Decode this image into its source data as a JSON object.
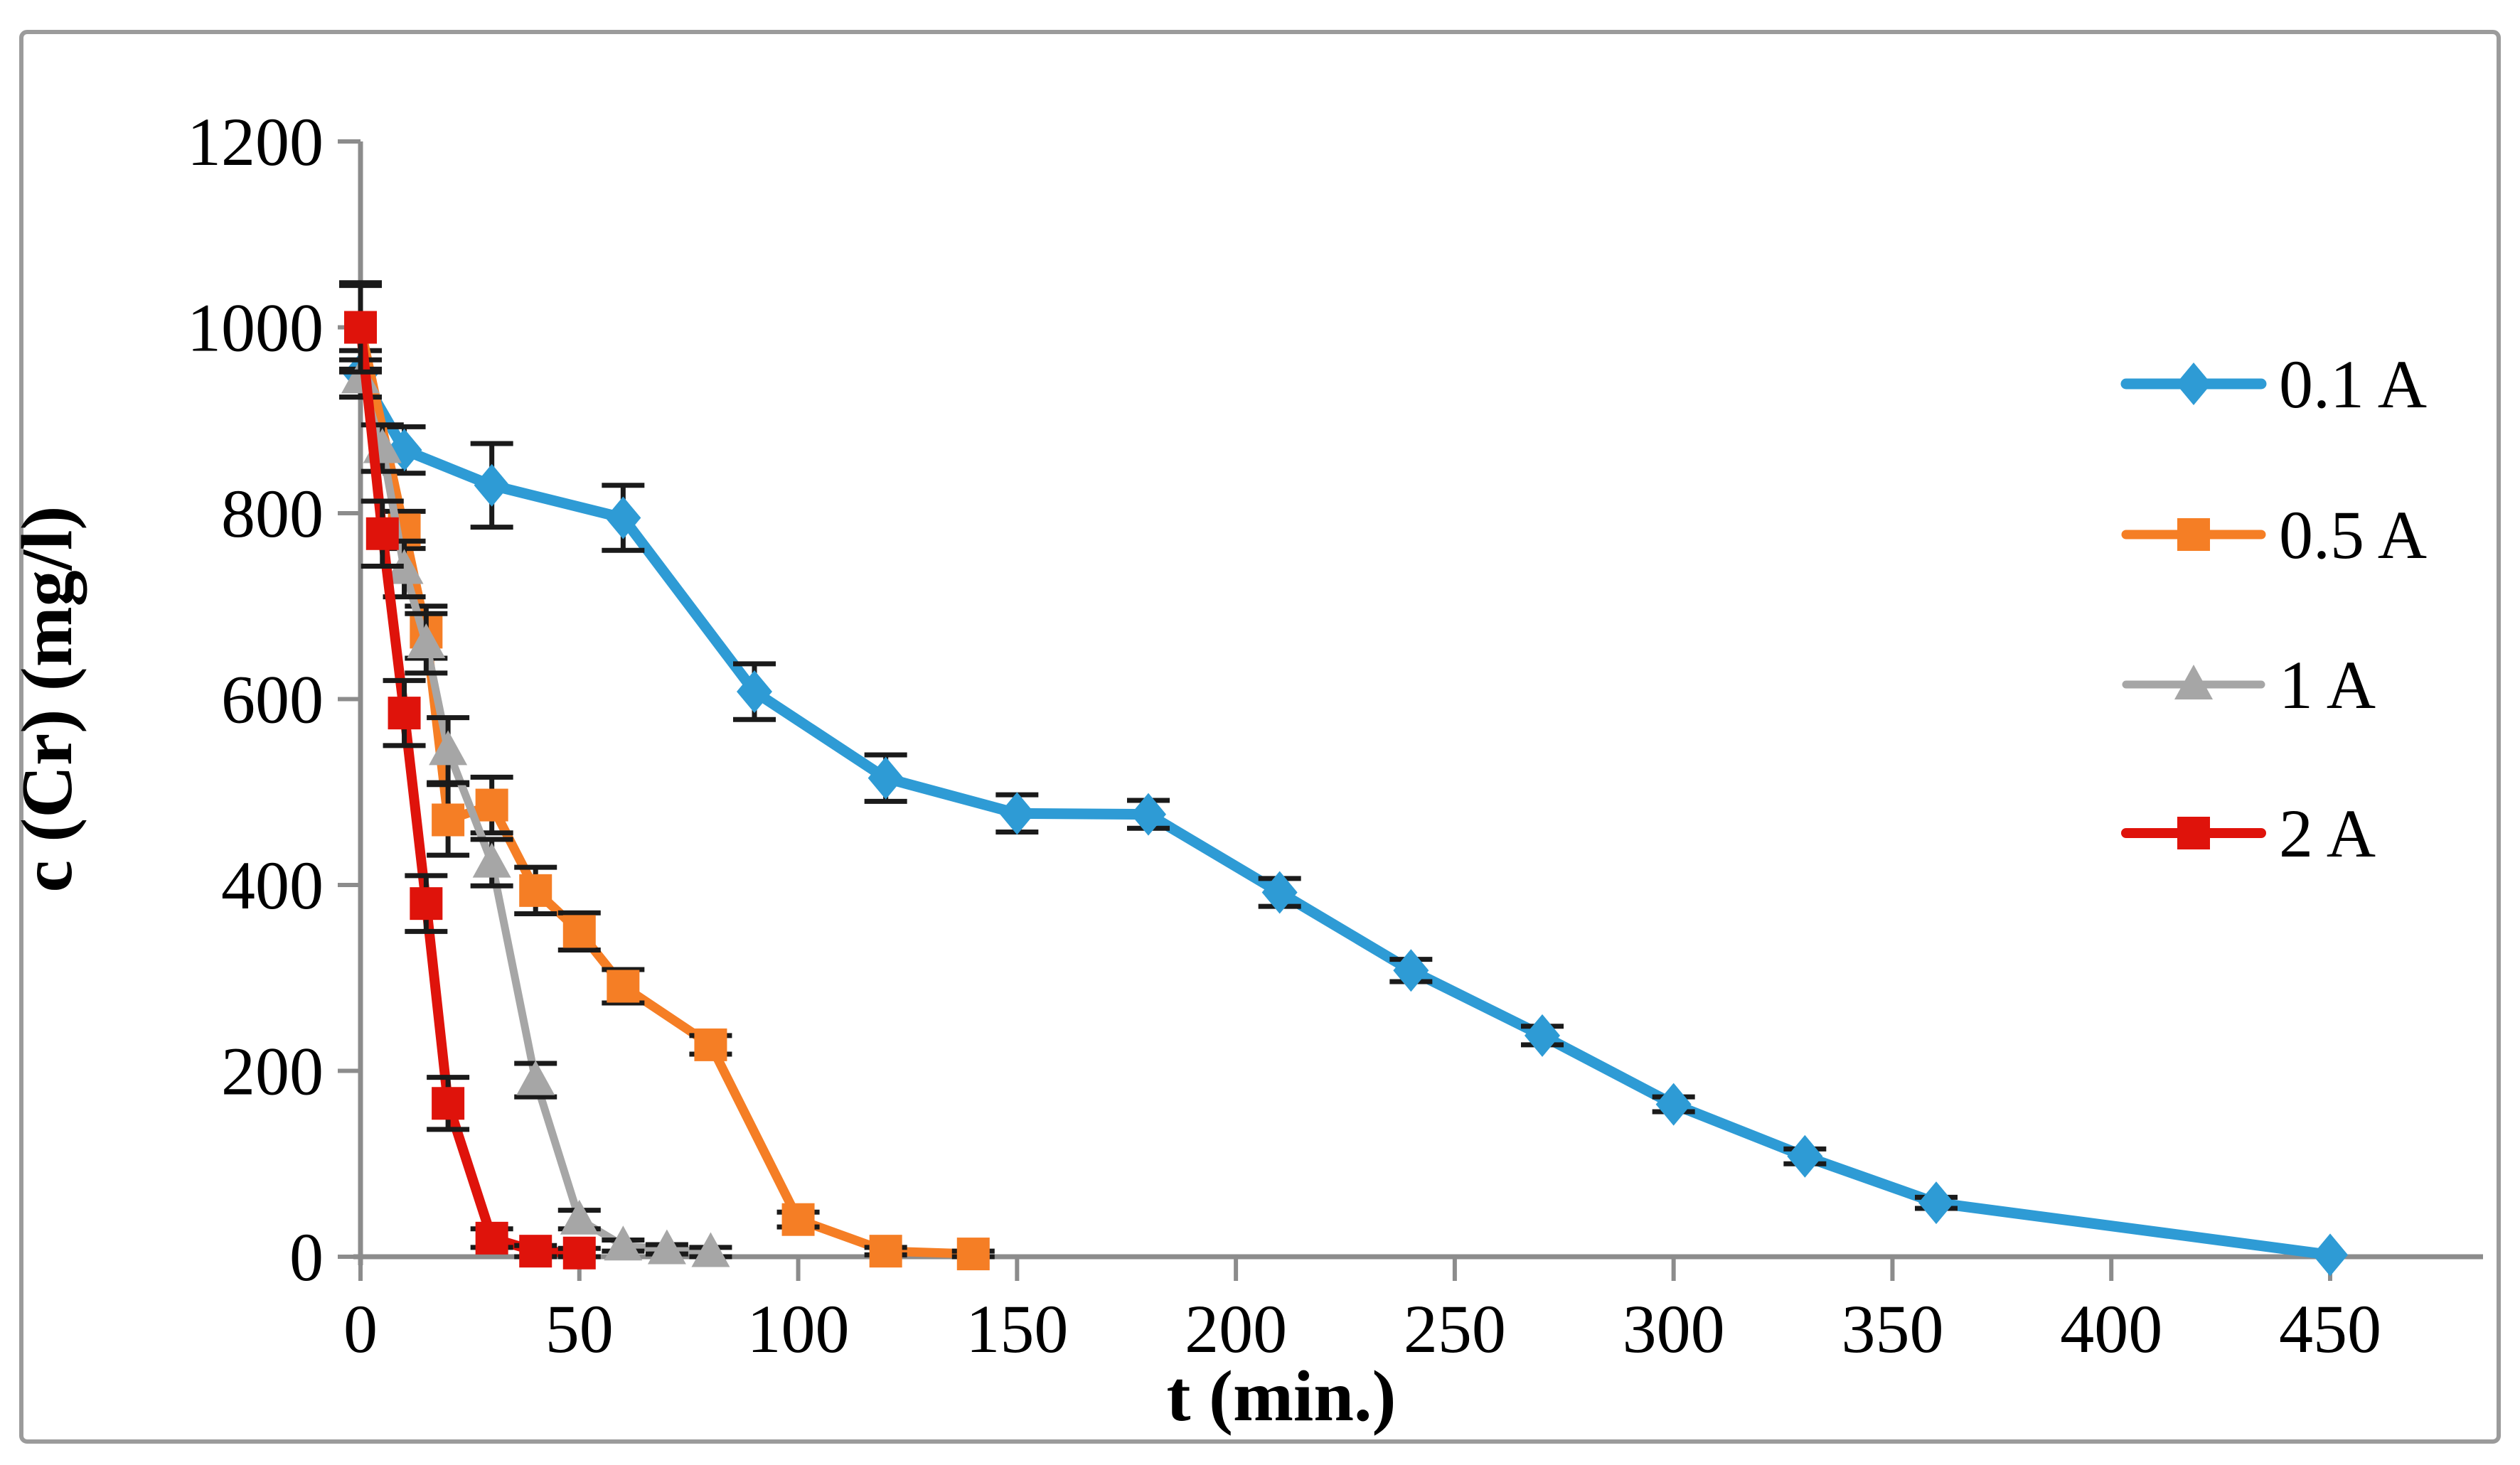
{
  "figure": {
    "background": "#ffffff",
    "border_color": "#9b9b9b",
    "axis_color": "#8c8c8c",
    "error_bar_color": "#1a1a1a",
    "text_color": "#000000"
  },
  "chart_data": {
    "type": "line",
    "title": "",
    "xlabel": "t (min.)",
    "ylabel": "c (Cr) (mg/l)",
    "xlim": [
      0,
      450
    ],
    "ylim": [
      0,
      1200
    ],
    "xticks": [
      0,
      50,
      100,
      150,
      200,
      250,
      300,
      350,
      400,
      450
    ],
    "yticks": [
      0,
      200,
      400,
      600,
      800,
      1000,
      1200
    ],
    "grid": false,
    "legend_position": "right",
    "error_bars": true,
    "series": [
      {
        "name": "0.1 A",
        "color": "#2E9BD5",
        "marker": "diamond",
        "x": [
          0,
          10,
          30,
          60,
          90,
          120,
          150,
          180,
          210,
          240,
          270,
          300,
          330,
          360,
          450
        ],
        "y": [
          950,
          868,
          830,
          795,
          608,
          515,
          477,
          476,
          392,
          308,
          238,
          164,
          108,
          58,
          2
        ],
        "err": [
          25,
          25,
          45,
          35,
          30,
          25,
          20,
          15,
          15,
          12,
          10,
          8,
          8,
          6,
          0
        ]
      },
      {
        "name": "0.5 A",
        "color": "#F57E25",
        "marker": "square",
        "x": [
          0,
          10,
          15,
          20,
          30,
          40,
          50,
          60,
          80,
          100,
          120,
          140
        ],
        "y": [
          1000,
          782,
          672,
          470,
          486,
          394,
          350,
          291,
          228,
          40,
          6,
          3
        ],
        "err": [
          45,
          20,
          28,
          38,
          30,
          25,
          20,
          18,
          10,
          8,
          4,
          3
        ]
      },
      {
        "name": "1 A",
        "color": "#A6A6A6",
        "marker": "triangle",
        "x": [
          0,
          5,
          10,
          15,
          20,
          30,
          40,
          50,
          60,
          70,
          80
        ],
        "y": [
          945,
          870,
          740,
          660,
          545,
          424,
          190,
          40,
          12,
          8,
          5
        ],
        "err": [
          20,
          25,
          30,
          32,
          35,
          25,
          18,
          10,
          6,
          5,
          5
        ]
      },
      {
        "name": "2 A",
        "color": "#DF130B",
        "marker": "square",
        "x": [
          0,
          5,
          10,
          15,
          20,
          30,
          40,
          50
        ],
        "y": [
          1000,
          778,
          585,
          380,
          165,
          20,
          6,
          4
        ],
        "err": [
          48,
          35,
          35,
          30,
          28,
          10,
          6,
          5
        ]
      }
    ]
  }
}
